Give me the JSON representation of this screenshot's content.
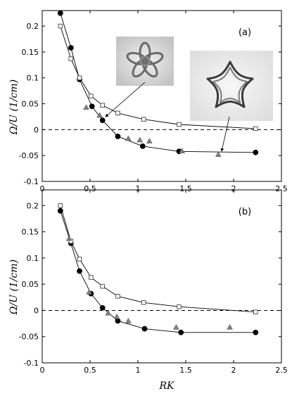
{
  "chart_data": [
    {
      "type": "scatter",
      "panel_label": "(a)",
      "ylabel": "Ω/U (1/cm)",
      "xlabel": "",
      "xlim": [
        0,
        2.5
      ],
      "ylim": [
        -0.1,
        0.23
      ],
      "x_ticks": [
        "0",
        "0.5",
        "1",
        "1.5",
        "2",
        "2.5"
      ],
      "y_ticks": [
        "-0.1",
        "-0.05",
        "0",
        "0.05",
        "0.1",
        "0.15",
        "0.2"
      ],
      "grid": false,
      "reference_line": {
        "y": 0,
        "style": "dashed"
      },
      "series": [
        {
          "marker": "filled-circle",
          "color": "#000000",
          "points": [
            [
              0.19,
              0.225
            ],
            [
              0.3,
              0.158
            ],
            [
              0.39,
              0.097
            ],
            [
              0.52,
              0.045
            ],
            [
              0.63,
              0.018
            ],
            [
              0.79,
              -0.013
            ],
            [
              1.05,
              -0.032
            ],
            [
              1.43,
              -0.042
            ],
            [
              2.23,
              -0.044
            ]
          ]
        },
        {
          "marker": "open-square",
          "color": "#555555",
          "points": [
            [
              0.19,
              0.2
            ],
            [
              0.3,
              0.137
            ],
            [
              0.39,
              0.1
            ],
            [
              0.51,
              0.065
            ],
            [
              0.63,
              0.047
            ],
            [
              0.79,
              0.032
            ],
            [
              1.06,
              0.02
            ],
            [
              1.43,
              0.01
            ],
            [
              2.23,
              0.002
            ]
          ]
        },
        {
          "marker": "filled-triangle",
          "color": "#808080",
          "points": [
            [
              0.46,
              0.043
            ],
            [
              0.6,
              0.028
            ],
            [
              0.9,
              -0.017
            ],
            [
              1.02,
              -0.02
            ],
            [
              1.12,
              -0.022
            ],
            [
              1.46,
              -0.041
            ],
            [
              1.84,
              -0.048
            ]
          ]
        }
      ],
      "insets": [
        {
          "name": "flower-shaped-ring-photo",
          "arrow_target": [
            0.54,
            0.03
          ]
        },
        {
          "name": "star-shaped-ring-photo",
          "arrow_target": [
            1.84,
            -0.046
          ]
        }
      ]
    },
    {
      "type": "scatter",
      "panel_label": "(b)",
      "ylabel": "Ω/U (1/cm)",
      "xlabel": "RK",
      "xlim": [
        0,
        2.5
      ],
      "ylim": [
        -0.1,
        0.23
      ],
      "x_ticks": [
        "0",
        "0.5",
        "1",
        "1.5",
        "2",
        "2.5"
      ],
      "y_ticks": [
        "-0.1",
        "-0.05",
        "0",
        "0.05",
        "0.1",
        "0.15",
        "0.2"
      ],
      "grid": false,
      "reference_line": {
        "y": 0,
        "style": "dashed"
      },
      "series": [
        {
          "marker": "filled-circle",
          "color": "#000000",
          "points": [
            [
              0.19,
              0.19
            ],
            [
              0.3,
              0.128
            ],
            [
              0.39,
              0.075
            ],
            [
              0.51,
              0.032
            ],
            [
              0.63,
              0.005
            ],
            [
              0.79,
              -0.02
            ],
            [
              1.07,
              -0.035
            ],
            [
              1.45,
              -0.042
            ],
            [
              2.23,
              -0.042
            ]
          ]
        },
        {
          "marker": "open-square",
          "color": "#555555",
          "points": [
            [
              0.19,
              0.2
            ],
            [
              0.3,
              0.132
            ],
            [
              0.39,
              0.098
            ],
            [
              0.51,
              0.063
            ],
            [
              0.63,
              0.046
            ],
            [
              0.79,
              0.027
            ],
            [
              1.06,
              0.015
            ],
            [
              1.43,
              0.007
            ],
            [
              2.23,
              -0.003
            ]
          ]
        },
        {
          "marker": "filled-triangle",
          "color": "#808080",
          "points": [
            [
              0.28,
              0.137
            ],
            [
              0.49,
              0.035
            ],
            [
              0.69,
              -0.005
            ],
            [
              0.78,
              -0.012
            ],
            [
              0.9,
              -0.02
            ],
            [
              1.4,
              -0.032
            ],
            [
              1.96,
              -0.032
            ]
          ]
        }
      ]
    }
  ]
}
